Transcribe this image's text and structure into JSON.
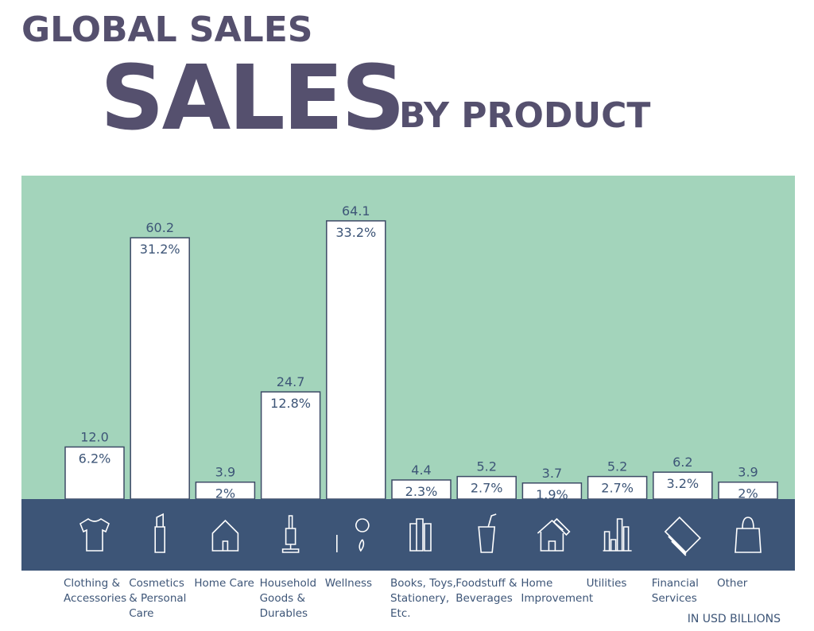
{
  "chart_data": {
    "type": "bar",
    "title": "GLOBAL SALES",
    "subtitle": "SALES",
    "subtitle_suffix": "BY PRODUCT",
    "unit_note": "IN USD BILLIONS",
    "categories": [
      [
        "Clothing &",
        "Accessories"
      ],
      [
        "Cosmetics",
        "& Personal",
        "Care"
      ],
      [
        "Home Care"
      ],
      [
        "Household",
        "Goods &",
        "Durables"
      ],
      [
        "Wellness"
      ],
      [
        "Books, Toys,",
        "Stationery,",
        "Etc."
      ],
      [
        "Foodstuff &",
        "Beverages"
      ],
      [
        "Home",
        "Improvement"
      ],
      [
        "Utilities"
      ],
      [
        "Financial",
        "Services"
      ],
      [
        "Other"
      ]
    ],
    "values": [
      12.0,
      60.2,
      3.9,
      24.7,
      64.1,
      4.4,
      5.2,
      3.7,
      5.2,
      6.2,
      3.9
    ],
    "value_labels": [
      "12.0",
      "60.2",
      "3.9",
      "24.7",
      "64.1",
      "4.4",
      "5.2",
      "3.7",
      "5.2",
      "6.2",
      "3.9"
    ],
    "share_labels": [
      "6.2%",
      "31.2%",
      "2%",
      "12.8%",
      "33.2%",
      "2.3%",
      "2.7%",
      "1.9%",
      "2.7%",
      "3.2%",
      "2%"
    ],
    "ylim": [
      0,
      65
    ],
    "color": "#ffffff",
    "background_color": "#a3d4bb",
    "band_color": "#3d5577"
  }
}
